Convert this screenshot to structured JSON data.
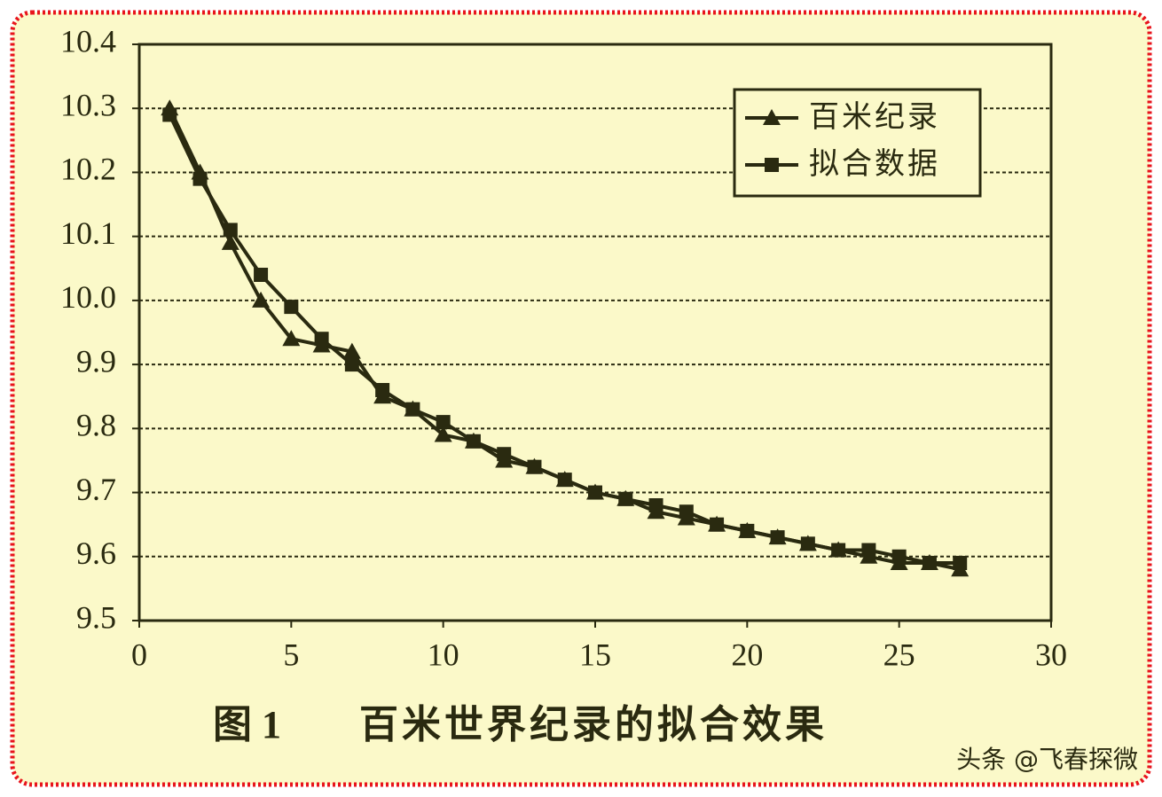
{
  "chart_data": {
    "type": "line",
    "figure_label": "图 1",
    "title": "百米世界纪录的拟合效果",
    "watermark": "头条 @飞春探微",
    "x": [
      1,
      2,
      3,
      4,
      5,
      6,
      7,
      8,
      9,
      10,
      11,
      12,
      13,
      14,
      15,
      16,
      17,
      18,
      19,
      20,
      21,
      22,
      23,
      24,
      25,
      26,
      27
    ],
    "series": [
      {
        "name": "百米纪录",
        "color": "#2a2a10",
        "marker": "triangle",
        "values": [
          10.3,
          10.2,
          10.09,
          10.0,
          9.94,
          9.93,
          9.92,
          9.85,
          9.83,
          9.79,
          9.78,
          9.75,
          9.74,
          9.72,
          9.7,
          9.69,
          9.67,
          9.66,
          9.65,
          9.64,
          9.63,
          9.62,
          9.61,
          9.6,
          9.59,
          9.59,
          9.58
        ]
      },
      {
        "name": "拟合数据",
        "color": "#2a2a10",
        "marker": "square",
        "values": [
          10.29,
          10.19,
          10.11,
          10.04,
          9.99,
          9.94,
          9.9,
          9.86,
          9.83,
          9.81,
          9.78,
          9.76,
          9.74,
          9.72,
          9.7,
          9.69,
          9.68,
          9.67,
          9.65,
          9.64,
          9.63,
          9.62,
          9.61,
          9.61,
          9.6,
          9.59,
          9.59
        ]
      }
    ],
    "xlim": [
      0,
      30
    ],
    "xticks": [
      0,
      5,
      10,
      15,
      20,
      25,
      30
    ],
    "ylim": [
      9.5,
      10.4
    ],
    "yticks": [
      9.5,
      9.6,
      9.7,
      9.8,
      9.9,
      {
        "value": 10,
        "label": "10.0"
      },
      10.1,
      10.2,
      10.3,
      10.4
    ],
    "grid": true,
    "legend": "upper right"
  }
}
